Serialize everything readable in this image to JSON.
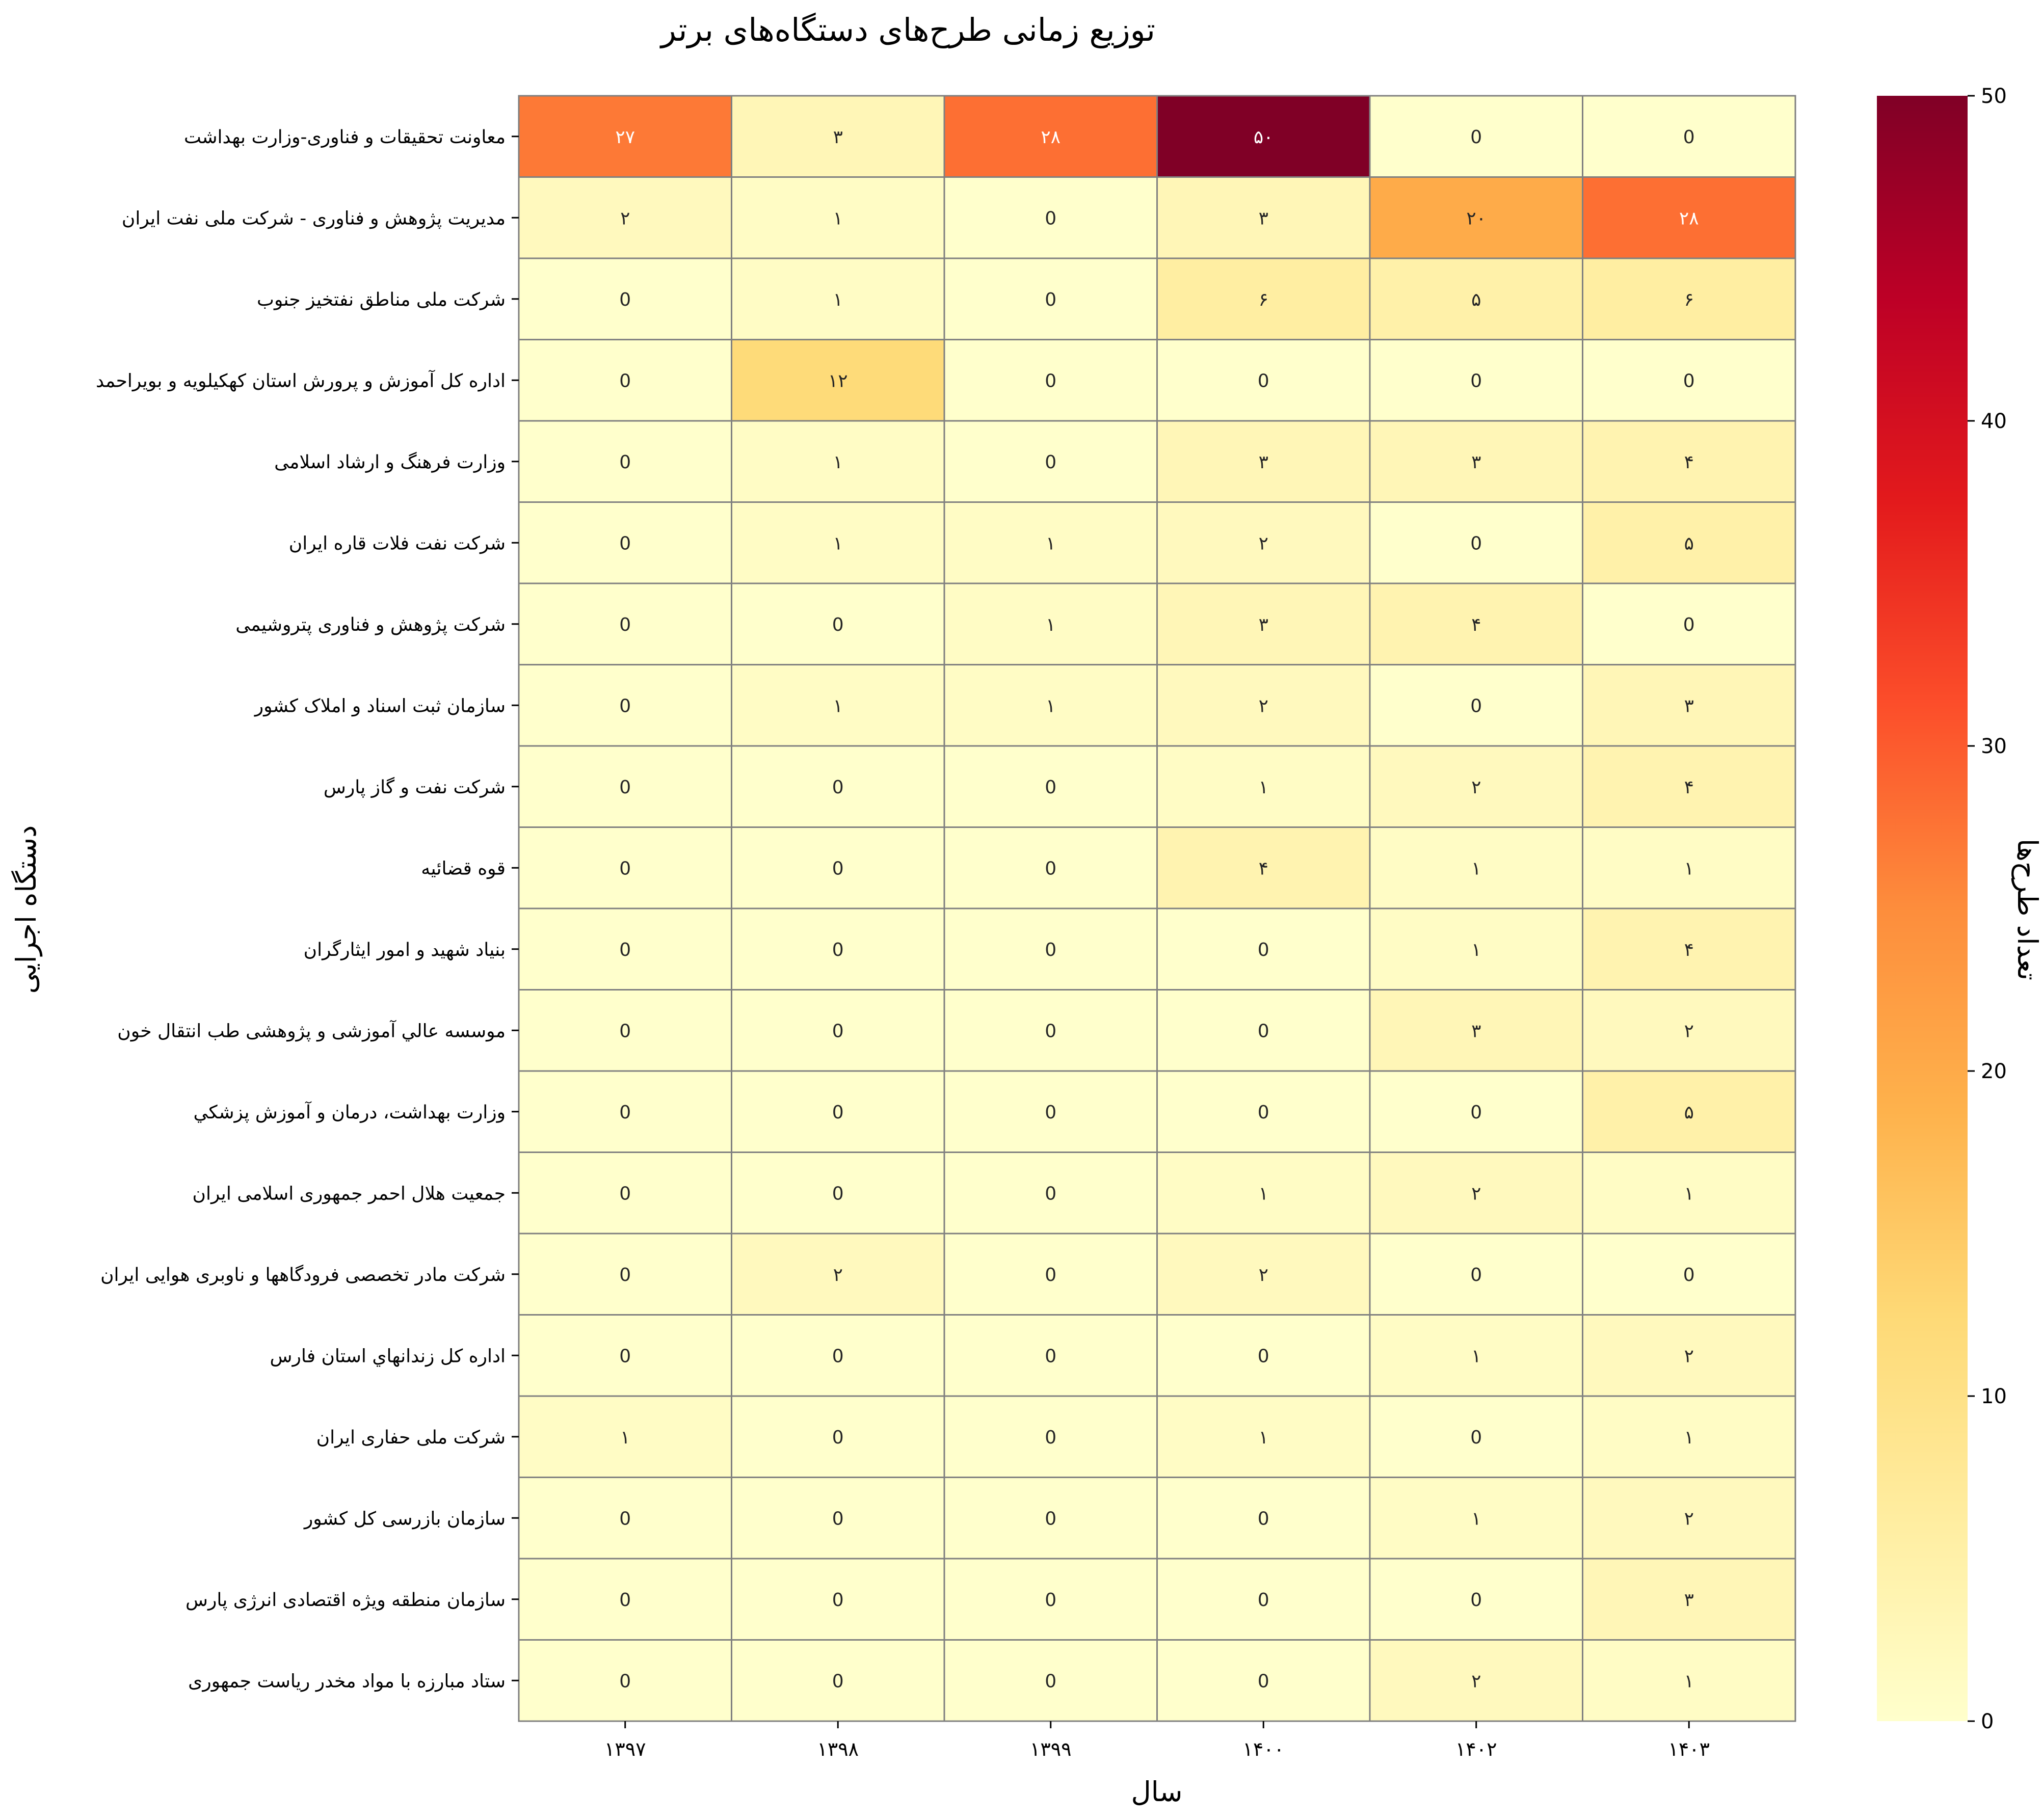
{
  "chart_data": {
    "type": "heatmap",
    "title": "توزیع زمانی طرح‌های دستگاه‌های برتر",
    "xlabel": "سال",
    "ylabel": "دستگاه اجرایی",
    "colorbar_label": "تعداد طرح‌ها",
    "colormap": "YlOrRd",
    "value_range": [
      0,
      50
    ],
    "colorbar_ticks": [
      "0",
      "10",
      "20",
      "30",
      "40",
      "50"
    ],
    "colorbar_tick_values": [
      0,
      10,
      20,
      30,
      40,
      50
    ],
    "grid_color": "#808080",
    "columns": [
      "۱۳۹۷",
      "۱۳۹۸",
      "۱۳۹۹",
      "۱۴۰۰",
      "۱۴۰۲",
      "۱۴۰۳"
    ],
    "rows": [
      "معاونت تحقیقات و فناوری-وزارت بهداشت",
      "مدیریت پژوهش و فناوری - شرکت ملی نفت ایران",
      "شرکت ملی مناطق نفتخیز جنوب",
      "اداره کل آموزش و پرورش استان کهکیلویه و بویراحمد",
      "وزارت فرهنگ و ارشاد اسلامی",
      "شرکت نفت فلات قاره ایران",
      "شرکت پژوهش و فناوری پتروشیمی",
      "سازمان ثبت اسناد و املاک کشور",
      "شرکت نفت و گاز پارس",
      "قوه قضائیه",
      "بنیاد شهید و امور ایثارگران",
      "موسسه عالي آموزشی و پژوهشی طب انتقال خون",
      "وزارت بهداشت، درمان و آموزش پزشكي",
      "جمعیت هلال احمر جمهوری اسلامی ایران",
      "شرکت مادر تخصصی فرودگاهها و ناوبری هوایی ایران",
      "اداره کل زندانهاي استان فارس",
      "شرکت ملی حفاری ایران",
      "سازمان بازرسی کل کشور",
      "سازمان منطقه ویژه اقتصادی انرژی پارس",
      "ستاد مبارزه با مواد مخدر ریاست جمهوری"
    ],
    "values": [
      [
        27,
        3,
        28,
        50,
        0,
        0
      ],
      [
        2,
        1,
        0,
        3,
        20,
        28
      ],
      [
        0,
        1,
        0,
        6,
        5,
        6
      ],
      [
        0,
        12,
        0,
        0,
        0,
        0
      ],
      [
        0,
        1,
        0,
        3,
        3,
        4
      ],
      [
        0,
        1,
        1,
        2,
        0,
        5
      ],
      [
        0,
        0,
        1,
        3,
        4,
        0
      ],
      [
        0,
        1,
        1,
        2,
        0,
        3
      ],
      [
        0,
        0,
        0,
        1,
        2,
        4
      ],
      [
        0,
        0,
        0,
        4,
        1,
        1
      ],
      [
        0,
        0,
        0,
        0,
        1,
        4
      ],
      [
        0,
        0,
        0,
        0,
        3,
        2
      ],
      [
        0,
        0,
        0,
        0,
        0,
        5
      ],
      [
        0,
        0,
        0,
        1,
        2,
        1
      ],
      [
        0,
        2,
        0,
        2,
        0,
        0
      ],
      [
        0,
        0,
        0,
        0,
        1,
        2
      ],
      [
        1,
        0,
        0,
        1,
        0,
        1
      ],
      [
        0,
        0,
        0,
        0,
        1,
        2
      ],
      [
        0,
        0,
        0,
        0,
        0,
        3
      ],
      [
        0,
        0,
        0,
        0,
        2,
        1
      ]
    ],
    "cell_labels": [
      [
        "۲۷",
        "۳",
        "۲۸",
        "۵۰",
        "0",
        "0"
      ],
      [
        "۲",
        "۱",
        "0",
        "۳",
        "۲۰",
        "۲۸"
      ],
      [
        "0",
        "۱",
        "0",
        "۶",
        "۵",
        "۶"
      ],
      [
        "0",
        "۱۲",
        "0",
        "0",
        "0",
        "0"
      ],
      [
        "0",
        "۱",
        "0",
        "۳",
        "۳",
        "۴"
      ],
      [
        "0",
        "۱",
        "۱",
        "۲",
        "0",
        "۵"
      ],
      [
        "0",
        "0",
        "۱",
        "۳",
        "۴",
        "0"
      ],
      [
        "0",
        "۱",
        "۱",
        "۲",
        "0",
        "۳"
      ],
      [
        "0",
        "0",
        "0",
        "۱",
        "۲",
        "۴"
      ],
      [
        "0",
        "0",
        "0",
        "۴",
        "۱",
        "۱"
      ],
      [
        "0",
        "0",
        "0",
        "0",
        "۱",
        "۴"
      ],
      [
        "0",
        "0",
        "0",
        "0",
        "۳",
        "۲"
      ],
      [
        "0",
        "0",
        "0",
        "0",
        "0",
        "۵"
      ],
      [
        "0",
        "0",
        "0",
        "۱",
        "۲",
        "۱"
      ],
      [
        "0",
        "۲",
        "0",
        "۲",
        "0",
        "0"
      ],
      [
        "0",
        "0",
        "0",
        "0",
        "۱",
        "۲"
      ],
      [
        "۱",
        "0",
        "0",
        "۱",
        "0",
        "۱"
      ],
      [
        "0",
        "0",
        "0",
        "0",
        "۱",
        "۲"
      ],
      [
        "0",
        "0",
        "0",
        "0",
        "0",
        "۳"
      ],
      [
        "0",
        "0",
        "0",
        "0",
        "۲",
        "۱"
      ]
    ]
  }
}
